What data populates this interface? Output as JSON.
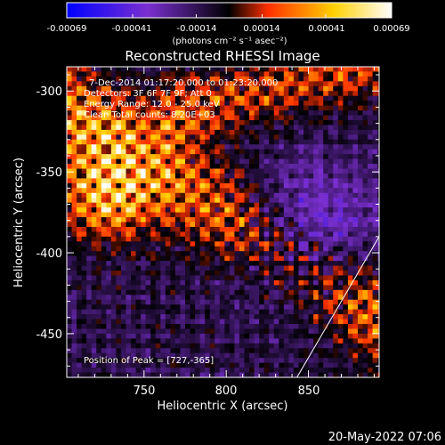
{
  "chart_data": {
    "type": "heatmap",
    "title": "Reconstructed RHESSI Image",
    "xlabel": "Heliocentric X (arcsec)",
    "ylabel": "Heliocentric Y (arcsec)",
    "xlim": [
      703,
      893
    ],
    "ylim": [
      -477,
      -285
    ],
    "x_ticks": [
      750,
      800,
      850
    ],
    "y_ticks": [
      -300,
      -350,
      -400,
      -450
    ],
    "colorbar": {
      "range": [
        -0.00069,
        0.00069
      ],
      "ticks": [
        "-0.00069",
        "-0.00041",
        "-0.00014",
        "0.00014",
        "0.00041",
        "0.00069"
      ],
      "unit_label": "(photons cm⁻² s⁻¹ asec⁻²)",
      "colors": [
        "#0000ff",
        "#7a2fd0",
        "#000000",
        "#ff3000",
        "#ffd000",
        "#ffffff"
      ]
    },
    "annotations": {
      "time": "7-Dec-2014 01:17:20.000 to 01:23:20.000",
      "detectors": "Detectors: 3F 6F 7F 9F; Att 0",
      "energy": "Energy Range: 12.0 - 25.0 keV",
      "method": "Clean     Total counts: 8.20E+03",
      "peak": "Position of Peak = [727,-365]"
    },
    "peak_position": [
      727,
      -365
    ],
    "limb_line": [
      [
        843,
        -477
      ],
      [
        893,
        -390
      ]
    ],
    "grid": false
  },
  "footer": {
    "date": "20-May-2022 07:06"
  }
}
